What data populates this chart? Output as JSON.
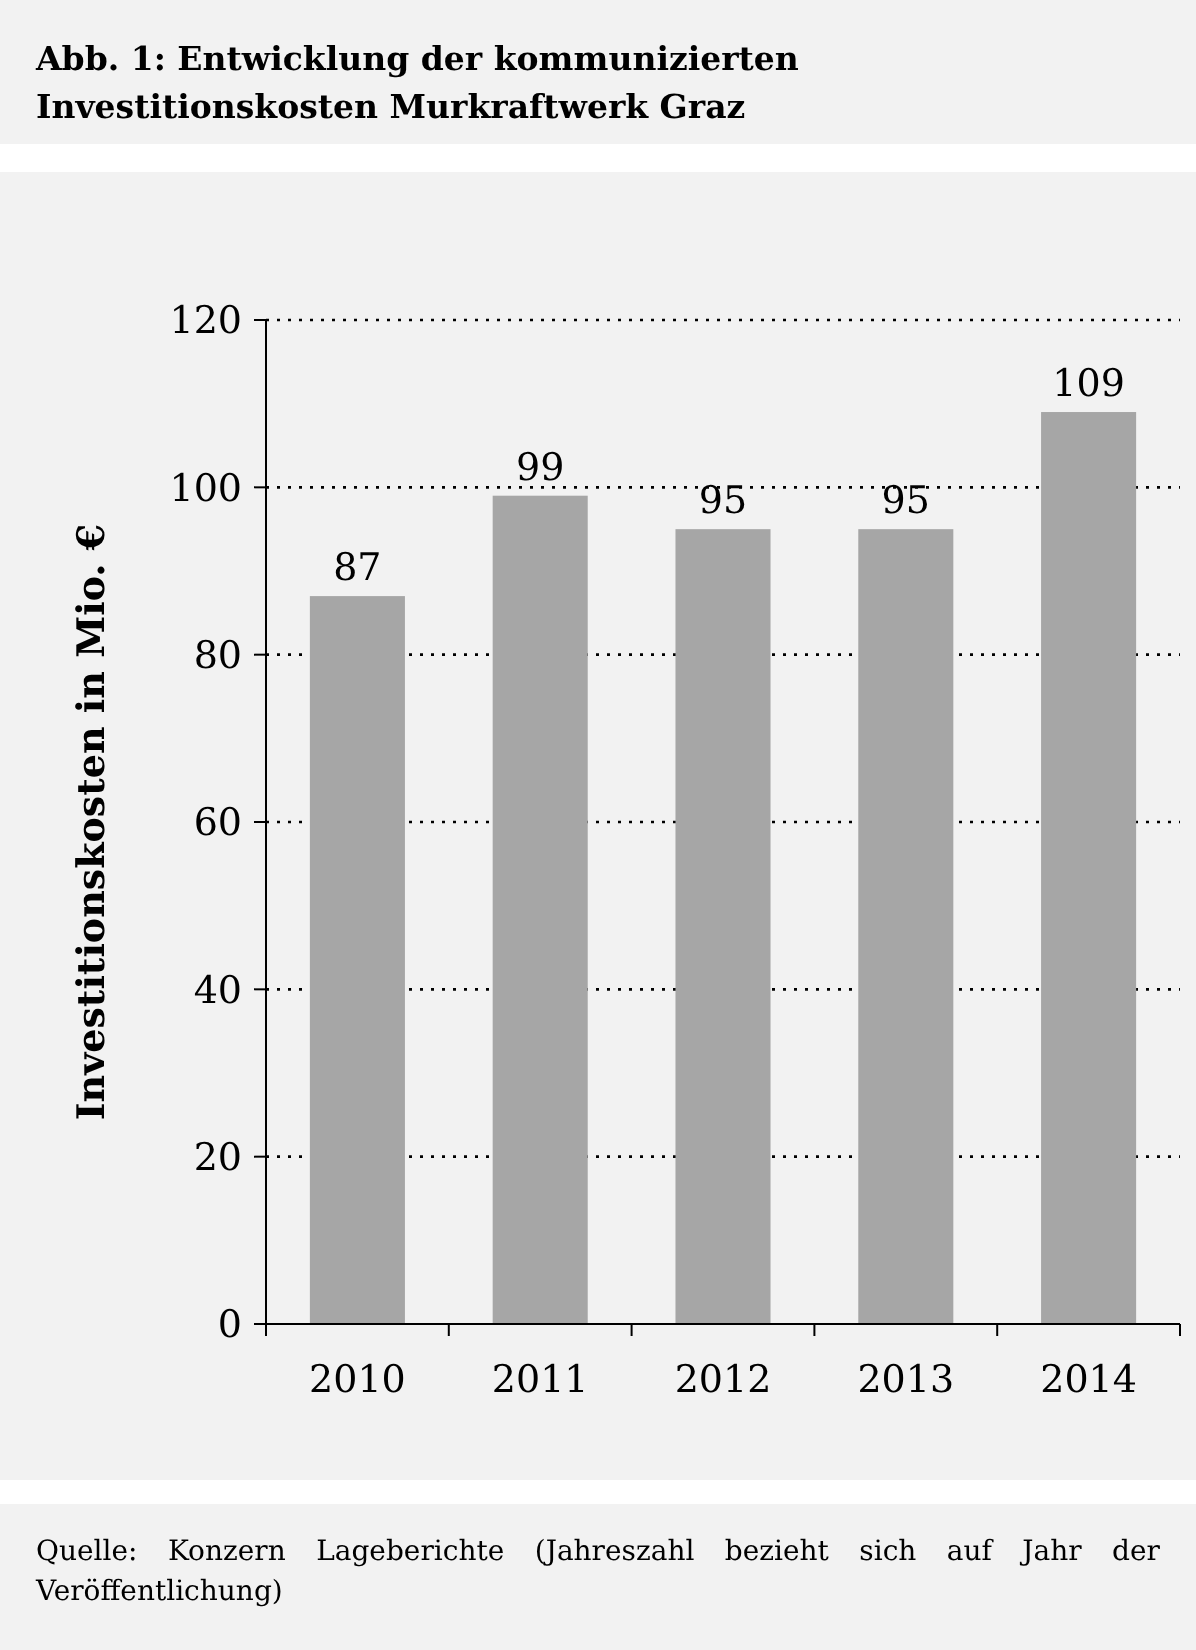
{
  "chart_data": {
    "type": "bar",
    "title": "Abb. 1: Entwicklung der kommunizierten Investitionskosten Murkraftwerk Graz",
    "ylabel": "Investitionskosten in Mio. €",
    "categories": [
      "2010",
      "2011",
      "2012",
      "2013",
      "2014"
    ],
    "values": [
      87,
      99,
      95,
      95,
      109
    ],
    "color": "#a6a6a6",
    "ylim": [
      0,
      120
    ],
    "yticks": [
      0,
      20,
      40,
      60,
      80,
      100,
      120
    ],
    "grid": "y",
    "data_labels": true,
    "annotations": [
      "Quelle: Konzern Lageberichte (Jahreszahl bezieht sich auf Jahr der Veröffentlichung)"
    ]
  }
}
